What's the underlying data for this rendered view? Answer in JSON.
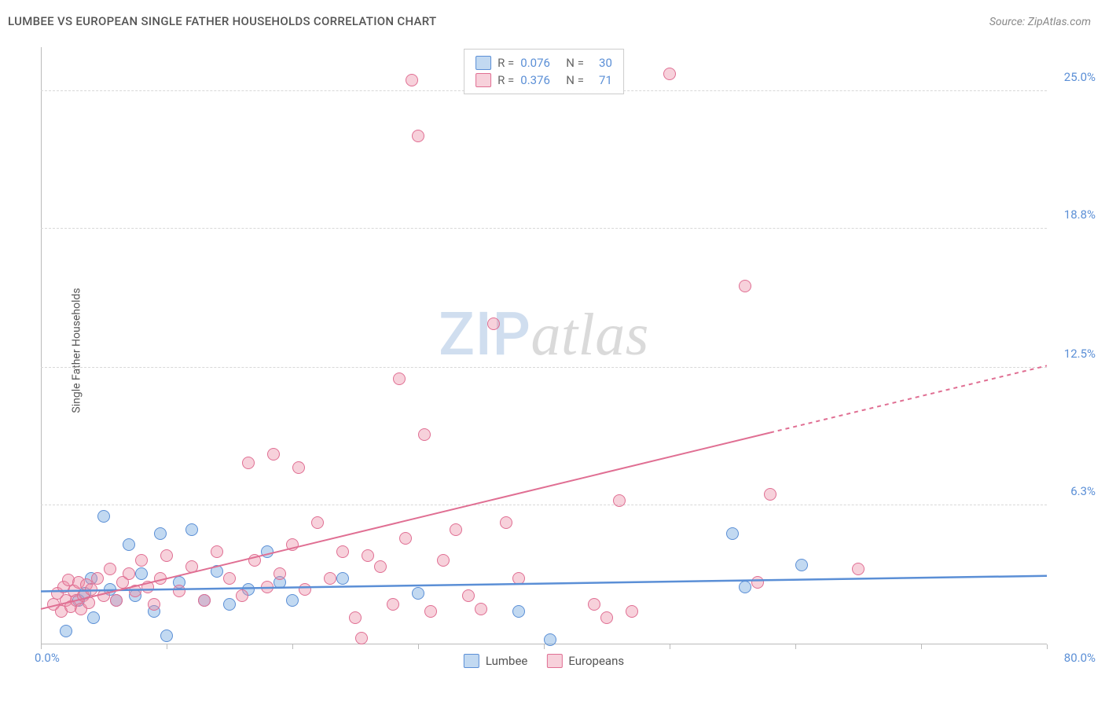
{
  "title": "LUMBEE VS EUROPEAN SINGLE FATHER HOUSEHOLDS CORRELATION CHART",
  "source": "Source: ZipAtlas.com",
  "y_axis_label": "Single Father Households",
  "watermark": {
    "left": "ZIP",
    "right": "atlas"
  },
  "chart": {
    "type": "scatter",
    "x_min": 0.0,
    "x_max": 80.0,
    "x_min_label": "0.0%",
    "x_max_label": "80.0%",
    "y_min": 0.0,
    "y_max": 27.0,
    "x_tick_step": 10.0,
    "y_ticks": [
      6.3,
      12.5,
      18.8,
      25.0
    ],
    "y_tick_labels": [
      "6.3%",
      "12.5%",
      "18.8%",
      "25.0%"
    ],
    "grid_color": "#d8d8d8",
    "axis_color": "#bbbbbb",
    "background": "#ffffff",
    "marker_radius": 8,
    "series": [
      {
        "name": "Lumbee",
        "fill": "rgba(120,170,225,0.45)",
        "stroke": "#5b8fd6",
        "R": "0.076",
        "N": "30",
        "trend": {
          "y_at_x0": 2.4,
          "y_at_xmax": 3.1,
          "solid_until_x": 80,
          "width": 2.5
        },
        "points": [
          [
            2.0,
            0.6
          ],
          [
            3.0,
            2.0
          ],
          [
            3.5,
            2.3
          ],
          [
            4.0,
            3.0
          ],
          [
            4.2,
            1.2
          ],
          [
            5.0,
            5.8
          ],
          [
            5.5,
            2.5
          ],
          [
            6.0,
            2.0
          ],
          [
            7.0,
            4.5
          ],
          [
            7.5,
            2.2
          ],
          [
            8.0,
            3.2
          ],
          [
            9.0,
            1.5
          ],
          [
            9.5,
            5.0
          ],
          [
            10.0,
            0.4
          ],
          [
            11.0,
            2.8
          ],
          [
            12.0,
            5.2
          ],
          [
            13.0,
            2.0
          ],
          [
            14.0,
            3.3
          ],
          [
            15.0,
            1.8
          ],
          [
            16.5,
            2.5
          ],
          [
            18.0,
            4.2
          ],
          [
            19.0,
            2.8
          ],
          [
            20.0,
            2.0
          ],
          [
            24.0,
            3.0
          ],
          [
            30.0,
            2.3
          ],
          [
            38.0,
            1.5
          ],
          [
            40.5,
            0.2
          ],
          [
            55.0,
            5.0
          ],
          [
            56.0,
            2.6
          ],
          [
            60.5,
            3.6
          ]
        ]
      },
      {
        "name": "Europeans",
        "fill": "rgba(235,140,165,0.40)",
        "stroke": "#e06f93",
        "R": "0.376",
        "N": "71",
        "trend": {
          "y_at_x0": 1.6,
          "y_at_xmax": 12.6,
          "solid_until_x": 58,
          "width": 2
        },
        "points": [
          [
            1.0,
            1.8
          ],
          [
            1.3,
            2.3
          ],
          [
            1.6,
            1.5
          ],
          [
            1.8,
            2.6
          ],
          [
            2.0,
            2.0
          ],
          [
            2.2,
            2.9
          ],
          [
            2.4,
            1.7
          ],
          [
            2.6,
            2.4
          ],
          [
            2.8,
            2.0
          ],
          [
            3.0,
            2.8
          ],
          [
            3.2,
            1.6
          ],
          [
            3.4,
            2.2
          ],
          [
            3.6,
            2.7
          ],
          [
            3.8,
            1.9
          ],
          [
            4.0,
            2.5
          ],
          [
            4.5,
            3.0
          ],
          [
            5.0,
            2.2
          ],
          [
            5.5,
            3.4
          ],
          [
            6.0,
            2.0
          ],
          [
            6.5,
            2.8
          ],
          [
            7.0,
            3.2
          ],
          [
            7.5,
            2.4
          ],
          [
            8.0,
            3.8
          ],
          [
            8.5,
            2.6
          ],
          [
            9.0,
            1.8
          ],
          [
            9.5,
            3.0
          ],
          [
            10.0,
            4.0
          ],
          [
            11.0,
            2.4
          ],
          [
            12.0,
            3.5
          ],
          [
            13.0,
            2.0
          ],
          [
            14.0,
            4.2
          ],
          [
            15.0,
            3.0
          ],
          [
            16.0,
            2.2
          ],
          [
            16.5,
            8.2
          ],
          [
            17.0,
            3.8
          ],
          [
            18.0,
            2.6
          ],
          [
            18.5,
            8.6
          ],
          [
            19.0,
            3.2
          ],
          [
            20.0,
            4.5
          ],
          [
            20.5,
            8.0
          ],
          [
            21.0,
            2.5
          ],
          [
            22.0,
            5.5
          ],
          [
            23.0,
            3.0
          ],
          [
            24.0,
            4.2
          ],
          [
            25.0,
            1.2
          ],
          [
            25.5,
            0.3
          ],
          [
            26.0,
            4.0
          ],
          [
            27.0,
            3.5
          ],
          [
            28.0,
            1.8
          ],
          [
            28.5,
            12.0
          ],
          [
            29.0,
            4.8
          ],
          [
            29.5,
            25.5
          ],
          [
            30.0,
            23.0
          ],
          [
            30.5,
            9.5
          ],
          [
            31.0,
            1.5
          ],
          [
            32.0,
            3.8
          ],
          [
            33.0,
            5.2
          ],
          [
            34.0,
            2.2
          ],
          [
            35.0,
            1.6
          ],
          [
            36.0,
            14.5
          ],
          [
            37.0,
            5.5
          ],
          [
            38.0,
            3.0
          ],
          [
            44.0,
            1.8
          ],
          [
            45.0,
            1.2
          ],
          [
            46.0,
            6.5
          ],
          [
            47.0,
            1.5
          ],
          [
            50.0,
            25.8
          ],
          [
            56.0,
            16.2
          ],
          [
            57.0,
            2.8
          ],
          [
            58.0,
            6.8
          ],
          [
            65.0,
            3.4
          ]
        ]
      }
    ],
    "bottom_legend": [
      "Lumbee",
      "Europeans"
    ]
  }
}
